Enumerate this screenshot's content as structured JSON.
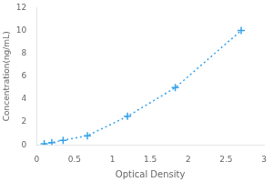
{
  "chart_data": {
    "type": "line",
    "x": [
      0.1,
      0.2,
      0.35,
      0.67,
      1.2,
      1.83,
      2.7
    ],
    "values": [
      0.1,
      0.2,
      0.4,
      0.8,
      2.5,
      5.0,
      10.0
    ],
    "xlabel": "Optical Density",
    "ylabel": "Concentration(ng/mL)",
    "xlim": [
      0,
      3
    ],
    "ylim": [
      0,
      12
    ],
    "xticks": [
      0,
      0.5,
      1,
      1.5,
      2,
      2.5,
      3
    ],
    "yticks": [
      0,
      2,
      4,
      6,
      8,
      10,
      12
    ],
    "marker": "+",
    "line_style": "dotted",
    "grid": false
  }
}
